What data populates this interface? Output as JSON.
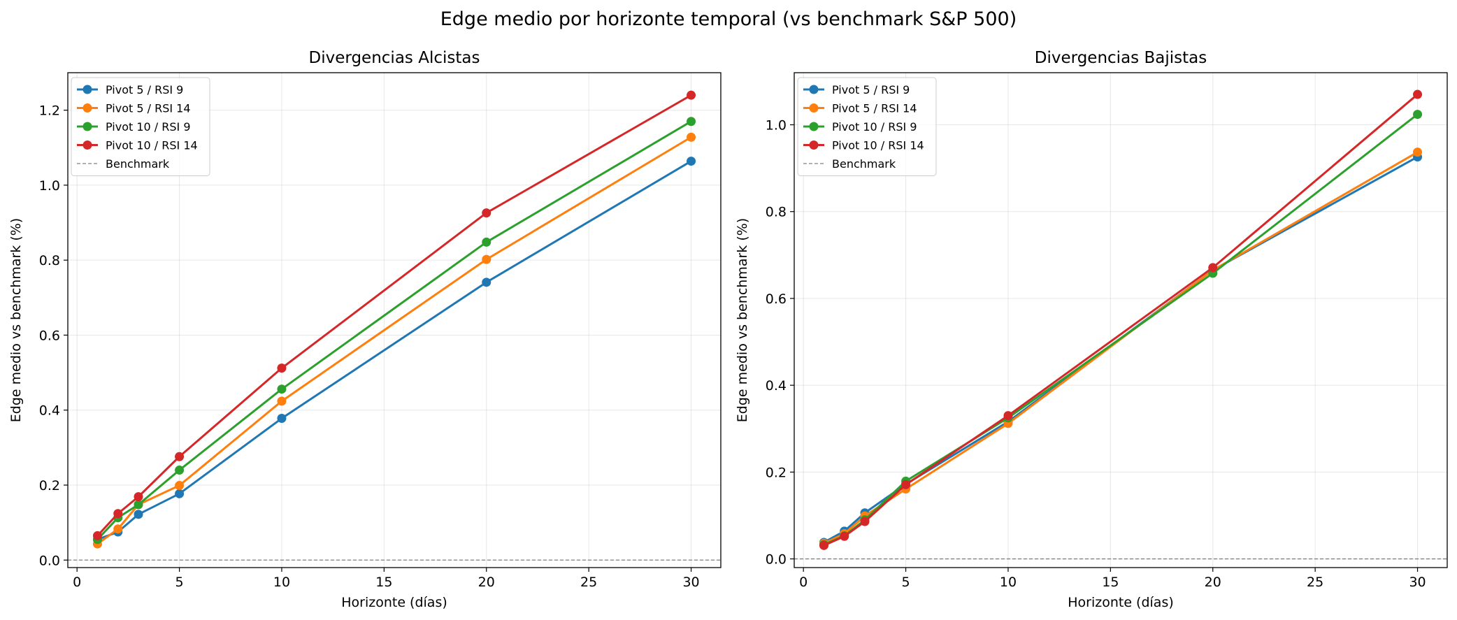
{
  "suptitle": "Edge medio por horizonte temporal (vs benchmark S&P 500)",
  "chart_data": [
    {
      "type": "line",
      "title": "Divergencias Alcistas",
      "xlabel": "Horizonte (días)",
      "ylabel": "Edge medio vs benchmark (%)",
      "x": [
        1,
        2,
        3,
        5,
        10,
        20,
        30
      ],
      "xlim": [
        -0.45,
        31.45
      ],
      "ylim": [
        -0.02,
        1.3
      ],
      "xticks": [
        0,
        5,
        10,
        15,
        20,
        25,
        30
      ],
      "yticks": [
        0.0,
        0.2,
        0.4,
        0.6,
        0.8,
        1.0,
        1.2
      ],
      "grid": true,
      "legend_position": "upper-left",
      "series": [
        {
          "name": "Pivot 5 / RSI 9",
          "color": "#1f77b4",
          "values": [
            0.055,
            0.075,
            0.122,
            0.177,
            0.378,
            0.741,
            1.064
          ]
        },
        {
          "name": "Pivot 5 / RSI 14",
          "color": "#ff7f0e",
          "values": [
            0.043,
            0.083,
            0.148,
            0.199,
            0.424,
            0.802,
            1.128
          ]
        },
        {
          "name": "Pivot 10 / RSI 9",
          "color": "#2ca02c",
          "values": [
            0.055,
            0.113,
            0.148,
            0.24,
            0.456,
            0.848,
            1.17
          ]
        },
        {
          "name": "Pivot 10 / RSI 14",
          "color": "#d62728",
          "values": [
            0.065,
            0.124,
            0.169,
            0.276,
            0.512,
            0.926,
            1.24
          ]
        }
      ],
      "benchmark": {
        "name": "Benchmark",
        "value": 0.0,
        "color": "#808080"
      }
    },
    {
      "type": "line",
      "title": "Divergencias Bajistas",
      "xlabel": "Horizonte (días)",
      "ylabel": "Edge medio vs benchmark (%)",
      "x": [
        1,
        2,
        3,
        5,
        10,
        20,
        30
      ],
      "xlim": [
        -0.45,
        31.45
      ],
      "ylim": [
        -0.02,
        1.12
      ],
      "xticks": [
        0,
        5,
        10,
        15,
        20,
        25,
        30
      ],
      "yticks": [
        0.0,
        0.2,
        0.4,
        0.6,
        0.8,
        1.0
      ],
      "grid": true,
      "legend_position": "upper-left",
      "series": [
        {
          "name": "Pivot 5 / RSI 9",
          "color": "#1f77b4",
          "values": [
            0.038,
            0.064,
            0.106,
            0.172,
            0.316,
            0.665,
            0.926
          ]
        },
        {
          "name": "Pivot 5 / RSI 14",
          "color": "#ff7f0e",
          "values": [
            0.036,
            0.058,
            0.099,
            0.161,
            0.312,
            0.665,
            0.937
          ]
        },
        {
          "name": "Pivot 10 / RSI 9",
          "color": "#2ca02c",
          "values": [
            0.033,
            0.053,
            0.09,
            0.179,
            0.325,
            0.658,
            1.024
          ]
        },
        {
          "name": "Pivot 10 / RSI 14",
          "color": "#d62728",
          "values": [
            0.031,
            0.052,
            0.086,
            0.171,
            0.33,
            0.671,
            1.07
          ]
        }
      ],
      "benchmark": {
        "name": "Benchmark",
        "value": 0.0,
        "color": "#808080"
      }
    }
  ]
}
